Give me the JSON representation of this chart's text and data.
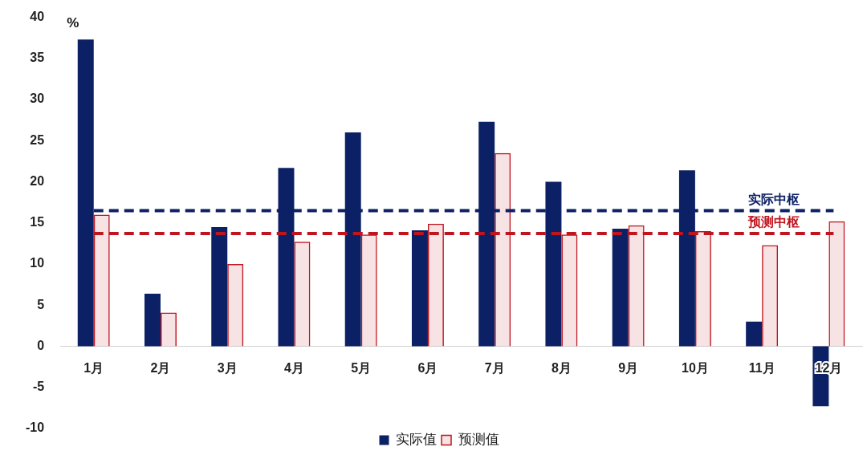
{
  "chart_data": {
    "type": "bar",
    "ylabel": "%",
    "categories": [
      "1月",
      "2月",
      "3月",
      "4月",
      "5月",
      "6月",
      "7月",
      "8月",
      "9月",
      "10月",
      "11月",
      "12月"
    ],
    "series": [
      {
        "name": "实际值",
        "color": "#0c2165",
        "values": [
          37.3,
          6.4,
          14.5,
          21.7,
          26.0,
          14.1,
          27.3,
          20.0,
          14.3,
          21.4,
          3.0,
          -7.3
        ]
      },
      {
        "name": "预测值",
        "color": "#c0151f",
        "values": [
          16.0,
          4.1,
          10.0,
          12.7,
          13.6,
          14.9,
          23.5,
          13.6,
          14.7,
          14.0,
          12.3,
          15.2
        ]
      }
    ],
    "ylim": [
      -10,
      40
    ],
    "yticks": [
      -10,
      -5,
      0,
      5,
      10,
      15,
      20,
      25,
      30,
      35,
      40
    ],
    "ref_lines": [
      {
        "axis": "y",
        "value": 16.5,
        "label": "实际中枢",
        "color": "#0c2165",
        "line_style": "dashed"
      },
      {
        "axis": "y",
        "value": 13.7,
        "label": "预测中枢",
        "color": "#c0151f",
        "line_style": "dashed"
      }
    ],
    "legend": "bottom",
    "grid": false
  }
}
